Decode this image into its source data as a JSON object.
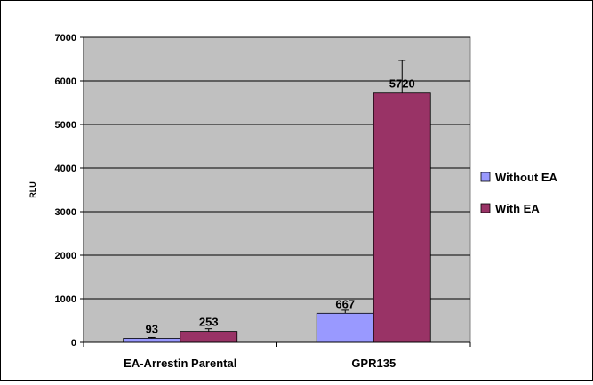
{
  "chart_data": {
    "type": "bar",
    "title": "",
    "xlabel": "",
    "ylabel": "RLU",
    "ylim": [
      0,
      7000
    ],
    "yticks": [
      0,
      1000,
      2000,
      3000,
      4000,
      5000,
      6000,
      7000
    ],
    "categories": [
      "EA-Arrestin Parental",
      "GPR135"
    ],
    "series": [
      {
        "name": "Without EA",
        "values": [
          93,
          667
        ],
        "errors": [
          20,
          70
        ],
        "labels": [
          "93",
          "667"
        ],
        "color": "#9999ff"
      },
      {
        "name": "With EA",
        "values": [
          253,
          5720
        ],
        "errors": [
          60,
          750
        ],
        "labels": [
          "253",
          "5720"
        ],
        "color": "#993366"
      }
    ],
    "grid": true,
    "legend_position": "right",
    "plot_background": "#c0c0c0"
  }
}
